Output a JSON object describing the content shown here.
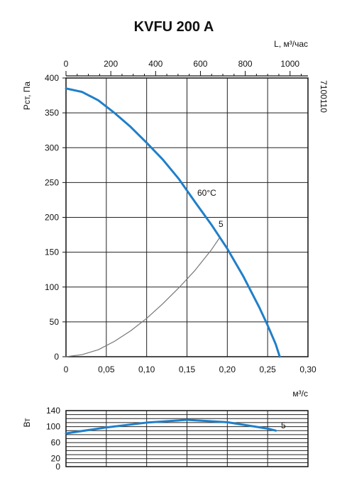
{
  "chart_data": [
    {
      "type": "line",
      "title": "KVFU 200 A",
      "code": "7100110",
      "ylabel": "Pст, Па",
      "xlabel": "м³/с",
      "xlabel_top": "L, м³/час",
      "xlim": [
        0,
        0.3
      ],
      "ylim": [
        0,
        400
      ],
      "x_ticks": [
        "0",
        "0,05",
        "0,10",
        "0,15",
        "0,20",
        "0,25",
        "0,30"
      ],
      "y_ticks": [
        "0",
        "50",
        "100",
        "150",
        "200",
        "250",
        "300",
        "350",
        "400"
      ],
      "x_top_ticks": [
        "0",
        "200",
        "400",
        "600",
        "800",
        "1000"
      ],
      "x_top_values": [
        0,
        200,
        400,
        600,
        800,
        1000
      ],
      "grid": true,
      "annotations": [
        "60°C",
        "5"
      ],
      "series": [
        {
          "name": "60°C",
          "color": "#1f7fc9",
          "x": [
            0,
            0.02,
            0.04,
            0.06,
            0.08,
            0.1,
            0.12,
            0.14,
            0.16,
            0.18,
            0.2,
            0.22,
            0.24,
            0.25,
            0.26,
            0.265
          ],
          "y": [
            385,
            380,
            368,
            350,
            330,
            307,
            283,
            255,
            222,
            190,
            155,
            115,
            70,
            45,
            18,
            0
          ]
        },
        {
          "name": "5",
          "color": "#777777",
          "x": [
            0,
            0.02,
            0.04,
            0.06,
            0.08,
            0.1,
            0.12,
            0.14,
            0.16,
            0.18,
            0.19
          ],
          "y": [
            0,
            3,
            10,
            22,
            37,
            55,
            76,
            99,
            124,
            153,
            170
          ]
        }
      ]
    },
    {
      "type": "line",
      "ylabel": "Вт",
      "xlim": [
        0,
        0.3
      ],
      "ylim": [
        0,
        140
      ],
      "y_ticks": [
        "0",
        "20",
        "60",
        "100",
        "140"
      ],
      "y_tick_values": [
        0,
        20,
        60,
        100,
        140
      ],
      "grid": true,
      "series": [
        {
          "name": "5",
          "color": "#1f7fc9",
          "x": [
            0,
            0.05,
            0.1,
            0.15,
            0.2,
            0.25,
            0.26
          ],
          "y": [
            83,
            98,
            110,
            117,
            111,
            95,
            90
          ]
        }
      ]
    }
  ]
}
